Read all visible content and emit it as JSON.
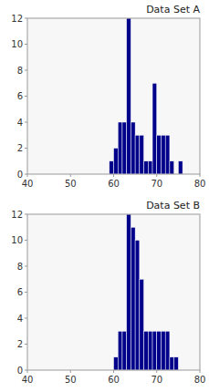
{
  "chart_data": [
    {
      "type": "histogram",
      "title": "Data Set A",
      "bins": [
        59,
        60,
        61,
        62,
        63,
        64,
        65,
        66,
        67,
        68,
        69,
        70,
        71,
        72,
        73,
        74,
        75,
        76
      ],
      "values": [
        1,
        2,
        4,
        4,
        12,
        4,
        3,
        3,
        1,
        1,
        7,
        3,
        3,
        3,
        1,
        0,
        1
      ],
      "color": "#00008B",
      "xlim": [
        40,
        80
      ],
      "xticks": [
        40,
        50,
        60,
        70,
        80
      ],
      "ylim": [
        0,
        12
      ],
      "yticks": [
        0,
        2,
        4,
        6,
        8,
        10,
        12
      ],
      "grid": false
    },
    {
      "type": "histogram",
      "title": "Data Set B",
      "bins": [
        60,
        61,
        62,
        63,
        64,
        65,
        66,
        67,
        68,
        69,
        70,
        71,
        72,
        73,
        74,
        75
      ],
      "values": [
        1,
        3,
        3,
        12,
        11,
        10,
        7,
        3,
        3,
        3,
        3,
        3,
        3,
        1,
        1
      ],
      "color": "#00008B",
      "xlim": [
        40,
        80
      ],
      "xticks": [
        40,
        50,
        60,
        70,
        80
      ],
      "ylim": [
        0,
        12
      ],
      "yticks": [
        0,
        2,
        4,
        6,
        8,
        10,
        12
      ],
      "grid": false
    }
  ]
}
